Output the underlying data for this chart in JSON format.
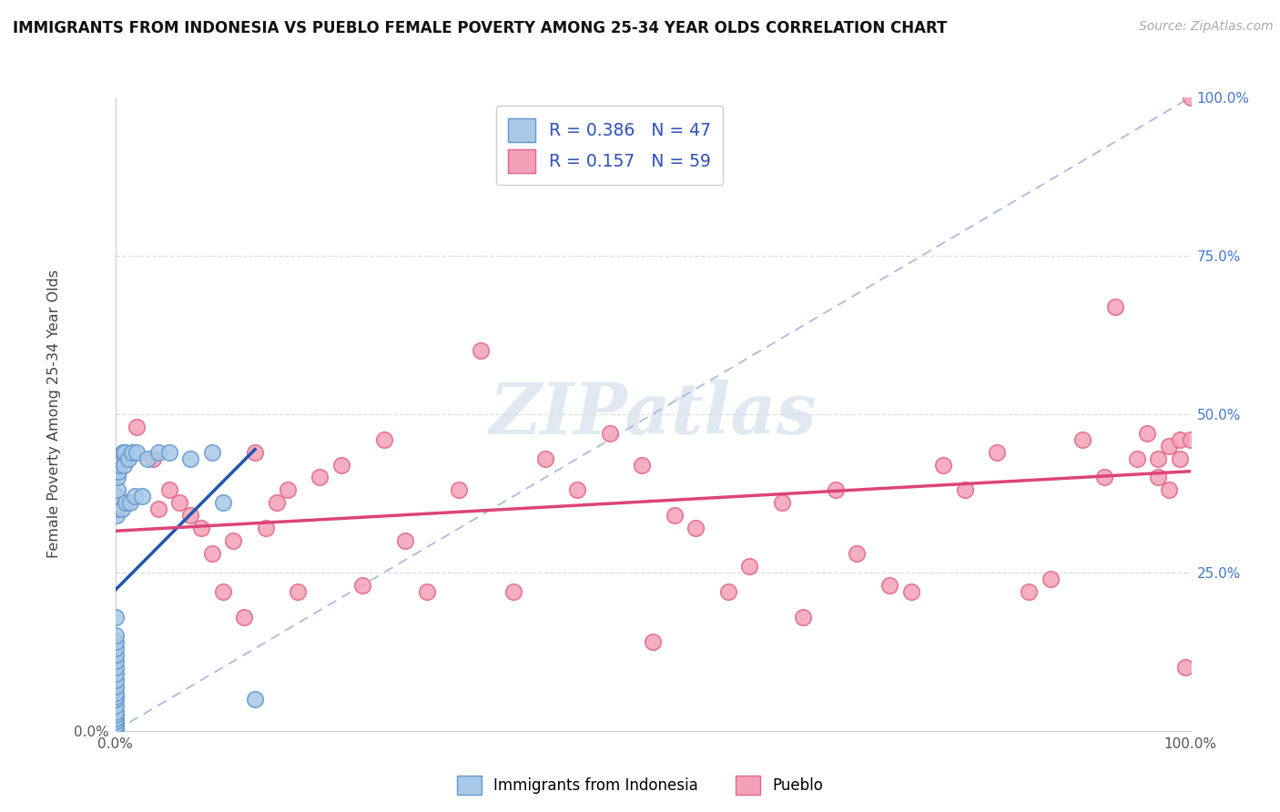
{
  "title": "IMMIGRANTS FROM INDONESIA VS PUEBLO FEMALE POVERTY AMONG 25-34 YEAR OLDS CORRELATION CHART",
  "source": "Source: ZipAtlas.com",
  "ylabel": "Female Poverty Among 25-34 Year Olds",
  "xlim": [
    0,
    1
  ],
  "ylim": [
    0,
    1
  ],
  "xtick_vals": [
    0,
    0.25,
    0.5,
    0.75,
    1.0
  ],
  "ytick_vals": [
    0,
    0.25,
    0.5,
    0.75,
    1.0
  ],
  "xlabels": [
    "0.0%",
    "",
    "",
    "",
    "100.0%"
  ],
  "ylabels_left": [
    "0.0%",
    "",
    "",
    "",
    ""
  ],
  "ylabels_right": [
    "",
    "25.0%",
    "50.0%",
    "75.0%",
    "100.0%"
  ],
  "blue_fill": "#a8c8e8",
  "blue_edge": "#6699cc",
  "pink_fill": "#f4a0b8",
  "pink_edge": "#e06888",
  "blue_line_color": "#2255aa",
  "pink_line_color": "#dd4477",
  "ref_line_color": "#aabbdd",
  "grid_color": "#dddddd",
  "R_blue": 0.386,
  "N_blue": 47,
  "R_pink": 0.157,
  "N_pink": 59,
  "legend_label_blue": "Immigrants from Indonesia",
  "legend_label_pink": "Pueblo",
  "watermark": "ZIPatlas",
  "blue_x": [
    0.0,
    0.0,
    0.0,
    0.0,
    0.0,
    0.0,
    0.0,
    0.0,
    0.0,
    0.0,
    0.0,
    0.0,
    0.0,
    0.0,
    0.0,
    0.0,
    0.0,
    0.0,
    0.0,
    0.0,
    0.0,
    0.001,
    0.001,
    0.001,
    0.002,
    0.002,
    0.003,
    0.004,
    0.005,
    0.006,
    0.007,
    0.008,
    0.009,
    0.01,
    0.012,
    0.014,
    0.016,
    0.018,
    0.02,
    0.025,
    0.03,
    0.04,
    0.05,
    0.07,
    0.09,
    0.1,
    0.13
  ],
  "blue_y": [
    0.0,
    0.005,
    0.01,
    0.015,
    0.02,
    0.025,
    0.03,
    0.04,
    0.05,
    0.055,
    0.06,
    0.07,
    0.08,
    0.09,
    0.1,
    0.11,
    0.12,
    0.13,
    0.14,
    0.15,
    0.18,
    0.34,
    0.35,
    0.37,
    0.38,
    0.4,
    0.41,
    0.42,
    0.43,
    0.35,
    0.44,
    0.42,
    0.44,
    0.36,
    0.43,
    0.36,
    0.44,
    0.37,
    0.44,
    0.37,
    0.43,
    0.44,
    0.44,
    0.43,
    0.44,
    0.36,
    0.05
  ],
  "pink_x": [
    0.02,
    0.035,
    0.04,
    0.05,
    0.06,
    0.07,
    0.08,
    0.09,
    0.1,
    0.11,
    0.12,
    0.13,
    0.14,
    0.15,
    0.16,
    0.17,
    0.19,
    0.21,
    0.23,
    0.25,
    0.27,
    0.29,
    0.32,
    0.34,
    0.37,
    0.4,
    0.43,
    0.46,
    0.49,
    0.5,
    0.52,
    0.54,
    0.57,
    0.59,
    0.62,
    0.64,
    0.67,
    0.69,
    0.72,
    0.74,
    0.77,
    0.79,
    0.82,
    0.85,
    0.87,
    0.9,
    0.92,
    0.93,
    0.95,
    0.96,
    0.97,
    0.97,
    0.98,
    0.98,
    0.99,
    0.99,
    0.995,
    1.0,
    1.0
  ],
  "pink_y": [
    0.48,
    0.43,
    0.35,
    0.38,
    0.36,
    0.34,
    0.32,
    0.28,
    0.22,
    0.3,
    0.18,
    0.44,
    0.32,
    0.36,
    0.38,
    0.22,
    0.4,
    0.42,
    0.23,
    0.46,
    0.3,
    0.22,
    0.38,
    0.6,
    0.22,
    0.43,
    0.38,
    0.47,
    0.42,
    0.14,
    0.34,
    0.32,
    0.22,
    0.26,
    0.36,
    0.18,
    0.38,
    0.28,
    0.23,
    0.22,
    0.42,
    0.38,
    0.44,
    0.22,
    0.24,
    0.46,
    0.4,
    0.67,
    0.43,
    0.47,
    0.43,
    0.4,
    0.38,
    0.45,
    0.46,
    0.43,
    0.1,
    0.46,
    1.0
  ]
}
